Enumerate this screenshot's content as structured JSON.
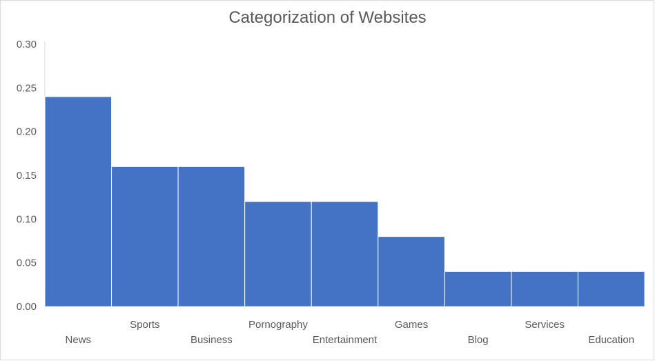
{
  "chart_data": {
    "type": "bar",
    "title": "Categorization of Websites",
    "xlabel": "",
    "ylabel": "",
    "categories": [
      "News",
      "Sports",
      "Business",
      "Pornography",
      "Entertainment",
      "Games",
      "Blog",
      "Services",
      "Education"
    ],
    "values": [
      0.24,
      0.16,
      0.16,
      0.12,
      0.12,
      0.08,
      0.04,
      0.04,
      0.04
    ],
    "ylim": [
      0,
      0.3
    ],
    "yticks": [
      "0.00",
      "0.05",
      "0.10",
      "0.15",
      "0.20",
      "0.25",
      "0.30"
    ],
    "grid": false,
    "legend": "none",
    "bar_color": "#4472C4",
    "bar_gap": "none"
  }
}
